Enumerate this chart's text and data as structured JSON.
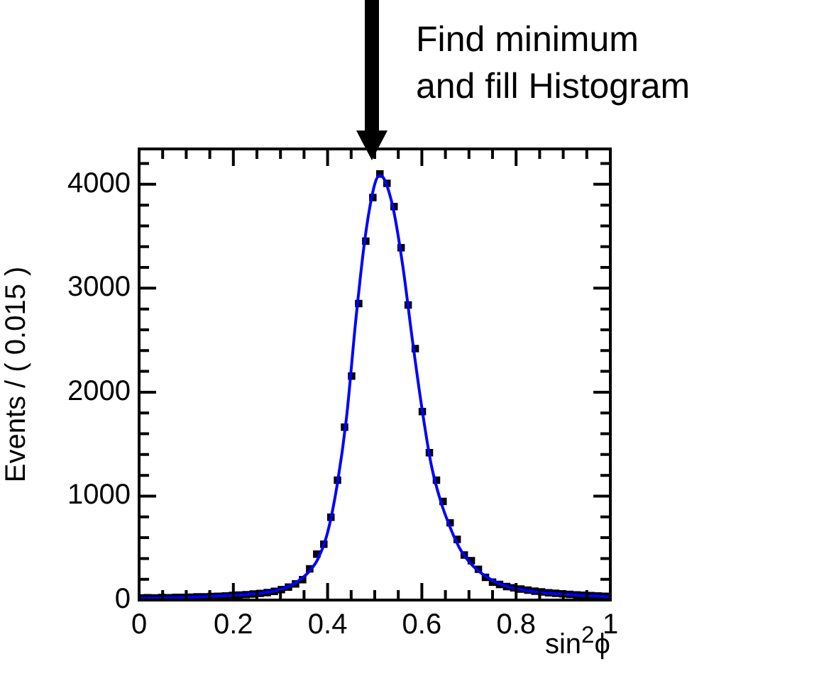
{
  "chart_data": {
    "type": "scatter",
    "xlabel": "sin$^{2}$ϕ",
    "ylabel": "Events / ( 0.015 )",
    "annotations": [
      "Find minimum\nand fill Histogram"
    ],
    "xlim": [
      0,
      1
    ],
    "ylim": [
      0,
      4340
    ],
    "xticks": [
      0,
      {
        "value": 0.05,
        "label": null
      },
      {
        "value": 0.1,
        "label": null
      },
      {
        "value": 0.15,
        "label": null
      },
      0.2,
      {
        "value": 0.25,
        "label": null
      },
      {
        "value": 0.3,
        "label": null
      },
      {
        "value": 0.35,
        "label": null
      },
      0.4,
      {
        "value": 0.45,
        "label": null
      },
      {
        "value": 0.5,
        "label": null
      },
      {
        "value": 0.55,
        "label": null
      },
      0.6,
      {
        "value": 0.65,
        "label": null
      },
      {
        "value": 0.7,
        "label": null
      },
      {
        "value": 0.75,
        "label": null
      },
      0.8,
      {
        "value": 0.85,
        "label": null
      },
      {
        "value": 0.9,
        "label": null
      },
      {
        "value": 0.95,
        "label": null
      },
      1
    ],
    "yticks": [
      0,
      {
        "value": 200,
        "label": null
      },
      {
        "value": 400,
        "label": null
      },
      {
        "value": 600,
        "label": null
      },
      {
        "value": 800,
        "label": null
      },
      1000,
      {
        "value": 1200,
        "label": null
      },
      {
        "value": 1400,
        "label": null
      },
      {
        "value": 1600,
        "label": null
      },
      {
        "value": 1800,
        "label": null
      },
      2000,
      {
        "value": 2200,
        "label": null
      },
      {
        "value": 2400,
        "label": null
      },
      {
        "value": 2600,
        "label": null
      },
      {
        "value": 2800,
        "label": null
      },
      3000,
      {
        "value": 3200,
        "label": null
      },
      {
        "value": 3400,
        "label": null
      },
      {
        "value": 3600,
        "label": null
      },
      {
        "value": 3800,
        "label": null
      },
      4000,
      {
        "value": 4200,
        "label": null
      }
    ],
    "grid": false,
    "legend": false,
    "series": [
      {
        "type": "scatter",
        "marker": "square",
        "color": "#000000",
        "x": [
          0.004,
          0.018,
          0.033,
          0.048,
          0.063,
          0.078,
          0.093,
          0.108,
          0.123,
          0.138,
          0.153,
          0.168,
          0.183,
          0.198,
          0.212,
          0.227,
          0.242,
          0.257,
          0.272,
          0.287,
          0.302,
          0.317,
          0.332,
          0.347,
          0.362,
          0.377,
          0.392,
          0.407,
          0.421,
          0.436,
          0.451,
          0.466,
          0.481,
          0.496,
          0.511,
          0.526,
          0.541,
          0.556,
          0.571,
          0.586,
          0.601,
          0.616,
          0.631,
          0.645,
          0.66,
          0.675,
          0.69,
          0.705,
          0.72,
          0.735,
          0.75,
          0.765,
          0.78,
          0.795,
          0.81,
          0.825,
          0.84,
          0.854,
          0.869,
          0.884,
          0.899,
          0.914,
          0.929,
          0.944,
          0.959,
          0.974,
          0.989
        ],
        "values": [
          20,
          22,
          20,
          24,
          22,
          25,
          26,
          28,
          30,
          30,
          34,
          36,
          40,
          44,
          48,
          52,
          58,
          64,
          72,
          84,
          100,
          125,
          155,
          196,
          301,
          442,
          538,
          797,
          1153,
          1663,
          2155,
          2852,
          3453,
          3872,
          4100,
          4009,
          3786,
          3390,
          2838,
          2419,
          1813,
          1417,
          1153,
          948,
          743,
          583,
          433,
          378,
          296,
          219,
          173,
          150,
          130,
          118,
          105,
          95,
          85,
          78,
          70,
          65,
          60,
          55,
          50,
          46,
          42,
          39,
          36
        ]
      },
      {
        "type": "line",
        "marker": "none",
        "line_style": "solid",
        "color": "#0000ff",
        "x": [
          0,
          0.1,
          0.2,
          0.25,
          0.3,
          0.33,
          0.36,
          0.38,
          0.4,
          0.42,
          0.44,
          0.46,
          0.48,
          0.5,
          0.51,
          0.52,
          0.54,
          0.56,
          0.58,
          0.6,
          0.62,
          0.64,
          0.66,
          0.68,
          0.7,
          0.72,
          0.75,
          0.78,
          0.82,
          0.9,
          1
        ],
        "values": [
          15,
          25,
          45,
          62,
          100,
          160,
          270,
          400,
          650,
          1100,
          1750,
          2700,
          3500,
          4000,
          4080,
          4050,
          3750,
          3200,
          2500,
          1850,
          1300,
          950,
          700,
          500,
          370,
          280,
          190,
          130,
          90,
          55,
          30
        ]
      }
    ]
  }
}
